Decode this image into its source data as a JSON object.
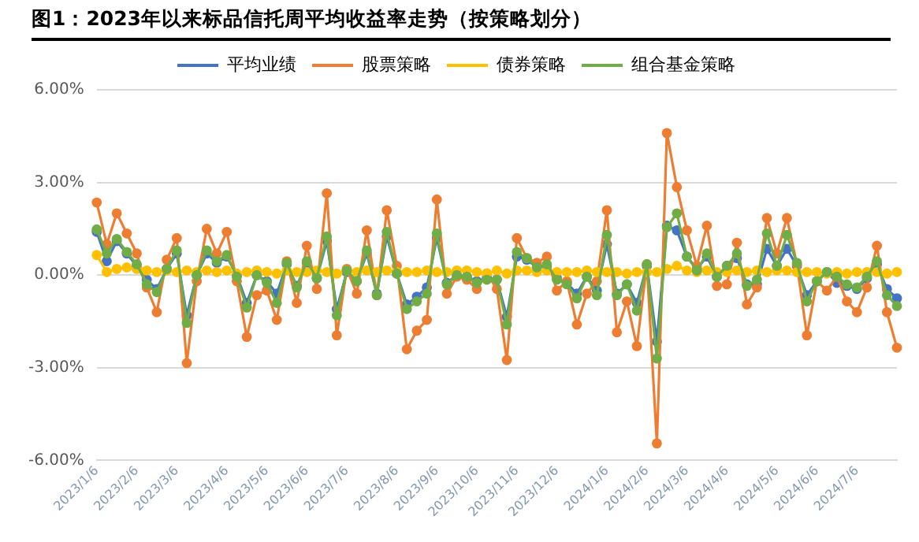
{
  "chart_data": {
    "type": "line",
    "title": "图1：2023年以来标品信托周平均收益率走势（按策略划分）",
    "categories": [
      "2023/1/6",
      null,
      null,
      null,
      "2023/2/6",
      null,
      null,
      null,
      "2023/3/6",
      null,
      null,
      null,
      null,
      "2023/4/6",
      null,
      null,
      null,
      "2023/5/6",
      null,
      null,
      null,
      "2023/6/6",
      null,
      null,
      null,
      "2023/7/6",
      null,
      null,
      null,
      null,
      "2023/8/6",
      null,
      null,
      null,
      "2023/9/6",
      null,
      null,
      null,
      "2023/10/6",
      null,
      null,
      null,
      "2023/11/6",
      null,
      null,
      null,
      "2023/12/6",
      null,
      null,
      null,
      null,
      "2024/1/6",
      null,
      null,
      null,
      "2024/2/6",
      null,
      null,
      null,
      "2024/3/6",
      null,
      null,
      null,
      "2024/4/6",
      null,
      null,
      null,
      null,
      "2024/5/6",
      null,
      null,
      null,
      "2024/6/6",
      null,
      null,
      null,
      "2024/7/6",
      null,
      null,
      null,
      null
    ],
    "series": [
      {
        "name": "平均业绩",
        "color": "#4472c4",
        "values": [
          1.4,
          0.45,
          1.1,
          0.7,
          0.3,
          -0.15,
          -0.45,
          0.2,
          0.7,
          -1.3,
          0,
          0.7,
          0.4,
          0.6,
          0,
          -0.9,
          0,
          -0.2,
          -0.6,
          0.35,
          -0.35,
          0.4,
          -0.1,
          1.1,
          -1.1,
          0.1,
          -0.2,
          0.7,
          -0.6,
          1.25,
          0.05,
          -0.95,
          -0.7,
          -0.4,
          1.2,
          -0.25,
          0,
          -0.05,
          -0.2,
          -0.1,
          -0.15,
          -1.35,
          0.6,
          0.5,
          0.25,
          0.3,
          -0.1,
          -0.25,
          -0.6,
          -0.05,
          -0.5,
          1.0,
          -0.6,
          -0.3,
          -0.9,
          0.3,
          -2.15,
          1.6,
          1.45,
          0.6,
          0.2,
          0.6,
          -0.05,
          0.3,
          0.55,
          -0.3,
          -0.3,
          0.85,
          0.3,
          0.85,
          0.3,
          -0.65,
          -0.2,
          0.1,
          -0.25,
          -0.35,
          -0.45,
          -0.1,
          0.35,
          -0.45,
          -0.75
        ]
      },
      {
        "name": "股票策略",
        "color": "#ed7d31",
        "values": [
          2.35,
          1.0,
          2.0,
          1.35,
          0.7,
          -0.4,
          -1.2,
          0.5,
          1.2,
          -2.85,
          -0.2,
          1.5,
          0.7,
          1.4,
          -0.2,
          -2.0,
          -0.65,
          -0.5,
          -1.45,
          0.45,
          -0.9,
          0.95,
          -0.45,
          2.65,
          -1.95,
          0.2,
          -0.6,
          1.45,
          -0.65,
          2.1,
          0.3,
          -2.4,
          -1.8,
          -1.45,
          2.45,
          -0.6,
          -0.05,
          -0.15,
          -0.45,
          0.05,
          -0.45,
          -2.75,
          1.2,
          0.55,
          0.4,
          0.6,
          -0.5,
          -0.2,
          -1.6,
          -0.6,
          -0.2,
          2.1,
          -1.85,
          -0.85,
          -2.3,
          0.35,
          -5.45,
          4.6,
          2.85,
          1.45,
          0.3,
          1.6,
          -0.35,
          -0.3,
          1.05,
          -0.95,
          -0.4,
          1.85,
          0.7,
          1.85,
          0.35,
          -1.95,
          -0.2,
          -0.5,
          -0.05,
          -0.85,
          -1.2,
          -0.4,
          0.95,
          -1.2,
          -2.35
        ]
      },
      {
        "name": "债券策略",
        "color": "#ffc000",
        "values": [
          0.65,
          0.1,
          0.2,
          0.25,
          0.2,
          0.15,
          0.1,
          0.15,
          0.1,
          0.15,
          0.1,
          0.15,
          0.1,
          0.15,
          0.05,
          0.1,
          0.15,
          0.1,
          0.05,
          0.15,
          0.1,
          0.1,
          0.15,
          0.1,
          0.05,
          0.15,
          0.1,
          0.15,
          0.1,
          0.15,
          0.1,
          0.1,
          0.1,
          0.15,
          0.1,
          0.1,
          0.15,
          0.15,
          0.1,
          0.05,
          0.15,
          0.05,
          0.15,
          0.15,
          0.1,
          0.15,
          0.1,
          0.1,
          0.1,
          0.15,
          0.1,
          0.1,
          0.1,
          0.05,
          0.1,
          0.1,
          0.1,
          0.2,
          0.3,
          0.15,
          0.1,
          0.15,
          0.1,
          0.1,
          0.15,
          0.1,
          0.15,
          0.1,
          0.15,
          0.15,
          0.1,
          0.1,
          0.1,
          0.05,
          0.1,
          0.05,
          0.1,
          0.1,
          0.1,
          0.05,
          0.1
        ]
      },
      {
        "name": "组合基金策略",
        "color": "#70ad47",
        "values": [
          1.48,
          0.7,
          1.17,
          0.75,
          0.35,
          -0.3,
          -0.55,
          0.2,
          0.8,
          -1.55,
          0,
          0.8,
          0.45,
          0.65,
          -0.05,
          -1.05,
          0,
          -0.25,
          -0.9,
          0.4,
          -0.4,
          0.45,
          -0.1,
          1.25,
          -1.3,
          0.15,
          -0.2,
          0.8,
          -0.65,
          1.4,
          0.05,
          -1.1,
          -0.85,
          -0.6,
          1.35,
          -0.3,
          0,
          -0.05,
          -0.25,
          -0.15,
          -0.15,
          -1.6,
          0.75,
          0.55,
          0.25,
          0.35,
          -0.15,
          -0.3,
          -0.75,
          -0.05,
          -0.65,
          1.3,
          -0.65,
          -0.3,
          -1.15,
          0.35,
          -2.7,
          1.55,
          2.0,
          0.6,
          0.15,
          0.7,
          -0.05,
          0.3,
          0.7,
          -0.35,
          -0.15,
          1.35,
          0.3,
          1.3,
          0.4,
          -0.85,
          -0.2,
          0.1,
          -0.05,
          -0.3,
          -0.4,
          -0.05,
          0.45,
          -0.65,
          -1.0
        ]
      }
    ],
    "ylim": [
      -6,
      6
    ],
    "yticks": [
      {
        "value": -6,
        "label": "-6.00%"
      },
      {
        "value": -3,
        "label": "-3.00%"
      },
      {
        "value": 0,
        "label": "0.00%"
      },
      {
        "value": 3,
        "label": "3.00%"
      },
      {
        "value": 6,
        "label": "6.00%"
      }
    ],
    "grid": "y",
    "legend": "top",
    "marker": "circle",
    "line_style": "solid"
  }
}
